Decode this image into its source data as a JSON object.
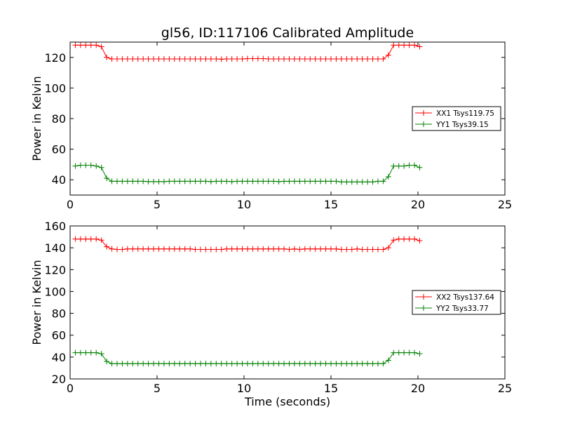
{
  "figure": {
    "title": "gl56, ID:117106 Calibrated Amplitude",
    "xlabel": "Time (seconds)"
  },
  "chart_data": [
    {
      "type": "line",
      "title": "gl56, ID:117106 Calibrated Amplitude",
      "xlabel": "",
      "ylabel": "Power in Kelvin",
      "xlim": [
        0,
        25
      ],
      "ylim": [
        30,
        130
      ],
      "xticks": [
        0,
        5,
        10,
        15,
        20,
        25
      ],
      "yticks": [
        40,
        60,
        80,
        100,
        120
      ],
      "grid": false,
      "legend_position": "center-right",
      "series": [
        {
          "name": "XX1 Tsys119.75",
          "color": "#ff0000",
          "marker": "+",
          "x": [
            0.3,
            0.6,
            0.9,
            1.2,
            1.5,
            1.8,
            2.1,
            2.4,
            2.7,
            3.0,
            3.3,
            3.6,
            3.9,
            4.2,
            4.5,
            4.8,
            5.1,
            5.4,
            5.7,
            6.0,
            6.3,
            6.6,
            6.9,
            7.2,
            7.5,
            7.8,
            8.1,
            8.4,
            8.7,
            9.0,
            9.3,
            9.6,
            9.9,
            10.2,
            10.5,
            10.8,
            11.1,
            11.4,
            11.7,
            12.0,
            12.3,
            12.6,
            12.9,
            13.2,
            13.5,
            13.8,
            14.1,
            14.4,
            14.7,
            15.0,
            15.3,
            15.6,
            15.9,
            16.2,
            16.5,
            16.8,
            17.1,
            17.4,
            17.7,
            18.0,
            18.3,
            18.6,
            18.9,
            19.2,
            19.5,
            19.8,
            20.1
          ],
          "values": [
            128,
            128,
            128,
            128,
            128,
            127,
            120,
            119,
            119,
            119,
            119,
            119,
            119,
            119,
            119,
            119,
            119,
            119,
            119,
            119,
            119,
            119,
            119,
            119,
            119,
            119,
            119,
            119,
            118.8,
            119,
            119,
            119,
            119,
            119.2,
            119.2,
            119.2,
            119.2,
            119,
            119,
            119,
            119,
            119,
            119,
            119,
            119,
            119,
            119,
            119,
            119,
            119,
            119,
            119,
            119,
            119,
            119,
            119,
            119,
            119,
            119,
            119,
            121.5,
            128,
            128,
            128,
            128,
            128,
            127
          ]
        },
        {
          "name": "YY1 Tsys39.15",
          "color": "#008000",
          "marker": "+",
          "x": [
            0.3,
            0.6,
            0.9,
            1.2,
            1.5,
            1.8,
            2.1,
            2.4,
            2.7,
            3.0,
            3.3,
            3.6,
            3.9,
            4.2,
            4.5,
            4.8,
            5.1,
            5.4,
            5.7,
            6.0,
            6.3,
            6.6,
            6.9,
            7.2,
            7.5,
            7.8,
            8.1,
            8.4,
            8.7,
            9.0,
            9.3,
            9.6,
            9.9,
            10.2,
            10.5,
            10.8,
            11.1,
            11.4,
            11.7,
            12.0,
            12.3,
            12.6,
            12.9,
            13.2,
            13.5,
            13.8,
            14.1,
            14.4,
            14.7,
            15.0,
            15.3,
            15.6,
            15.9,
            16.2,
            16.5,
            16.8,
            17.1,
            17.4,
            17.7,
            18.0,
            18.3,
            18.6,
            18.9,
            19.2,
            19.5,
            19.8,
            20.1
          ],
          "values": [
            49,
            49.5,
            49.5,
            49.5,
            49,
            48,
            41,
            39,
            39,
            39,
            39,
            39,
            39,
            39,
            38.8,
            38.8,
            38.8,
            38.8,
            39,
            39,
            39,
            39,
            39,
            39,
            39,
            39,
            38.8,
            39,
            39,
            39,
            38.8,
            39,
            39,
            39,
            39,
            39,
            39,
            39,
            39,
            38.8,
            39,
            39,
            39,
            39,
            39,
            39,
            39,
            39,
            39,
            39,
            39,
            38.6,
            38.6,
            38.6,
            38.6,
            38.6,
            38.6,
            38.6,
            39,
            39,
            42,
            49,
            49,
            49,
            49.5,
            49.5,
            48
          ]
        }
      ]
    },
    {
      "type": "line",
      "title": "",
      "xlabel": "Time (seconds)",
      "ylabel": "Power in Kelvin",
      "xlim": [
        0,
        25
      ],
      "ylim": [
        20,
        160
      ],
      "xticks": [
        0,
        5,
        10,
        15,
        20,
        25
      ],
      "yticks": [
        20,
        40,
        60,
        80,
        100,
        120,
        140,
        160
      ],
      "grid": false,
      "legend_position": "center-right",
      "series": [
        {
          "name": "XX2 Tsys137.64",
          "color": "#ff0000",
          "marker": "+",
          "x": [
            0.3,
            0.6,
            0.9,
            1.2,
            1.5,
            1.8,
            2.1,
            2.4,
            2.7,
            3.0,
            3.3,
            3.6,
            3.9,
            4.2,
            4.5,
            4.8,
            5.1,
            5.4,
            5.7,
            6.0,
            6.3,
            6.6,
            6.9,
            7.2,
            7.5,
            7.8,
            8.1,
            8.4,
            8.7,
            9.0,
            9.3,
            9.6,
            9.9,
            10.2,
            10.5,
            10.8,
            11.1,
            11.4,
            11.7,
            12.0,
            12.3,
            12.6,
            12.9,
            13.2,
            13.5,
            13.8,
            14.1,
            14.4,
            14.7,
            15.0,
            15.3,
            15.6,
            15.9,
            16.2,
            16.5,
            16.8,
            17.1,
            17.4,
            17.7,
            18.0,
            18.3,
            18.6,
            18.9,
            19.2,
            19.5,
            19.8,
            20.1
          ],
          "values": [
            148,
            148,
            148,
            148,
            148,
            147,
            141,
            139,
            138.5,
            138.5,
            139,
            139,
            139,
            139,
            139,
            139,
            139,
            139,
            139,
            139,
            139,
            139,
            139,
            138.5,
            138.5,
            138.5,
            138.5,
            138.5,
            138.5,
            139,
            139,
            139,
            139,
            139,
            139,
            139,
            139,
            139,
            139,
            139,
            139,
            138.5,
            139,
            138.5,
            139,
            139,
            139,
            139,
            139,
            139,
            139,
            138.5,
            138.5,
            138.5,
            139,
            138.5,
            138.5,
            138.5,
            138.5,
            138.5,
            140,
            147,
            148,
            148,
            148,
            148,
            146.5
          ]
        },
        {
          "name": "YY2 Tsys33.77",
          "color": "#008000",
          "marker": "+",
          "x": [
            0.3,
            0.6,
            0.9,
            1.2,
            1.5,
            1.8,
            2.1,
            2.4,
            2.7,
            3.0,
            3.3,
            3.6,
            3.9,
            4.2,
            4.5,
            4.8,
            5.1,
            5.4,
            5.7,
            6.0,
            6.3,
            6.6,
            6.9,
            7.2,
            7.5,
            7.8,
            8.1,
            8.4,
            8.7,
            9.0,
            9.3,
            9.6,
            9.9,
            10.2,
            10.5,
            10.8,
            11.1,
            11.4,
            11.7,
            12.0,
            12.3,
            12.6,
            12.9,
            13.2,
            13.5,
            13.8,
            14.1,
            14.4,
            14.7,
            15.0,
            15.3,
            15.6,
            15.9,
            16.2,
            16.5,
            16.8,
            17.1,
            17.4,
            17.7,
            18.0,
            18.3,
            18.6,
            18.9,
            19.2,
            19.5,
            19.8,
            20.1
          ],
          "values": [
            44,
            44,
            44,
            44,
            44,
            43,
            36,
            34,
            34,
            34,
            34,
            34,
            34,
            34,
            34,
            34,
            34,
            34,
            34,
            34,
            34,
            34,
            34,
            34,
            34,
            34,
            34,
            34,
            34,
            34,
            34,
            34,
            34,
            34,
            34,
            34,
            34,
            34,
            34,
            34,
            34,
            34,
            34,
            34,
            34,
            34,
            34,
            34,
            34,
            34,
            34,
            34,
            34,
            34,
            34,
            34,
            34,
            34,
            34,
            34,
            37,
            44,
            44,
            44,
            44,
            44,
            43
          ]
        }
      ]
    }
  ]
}
